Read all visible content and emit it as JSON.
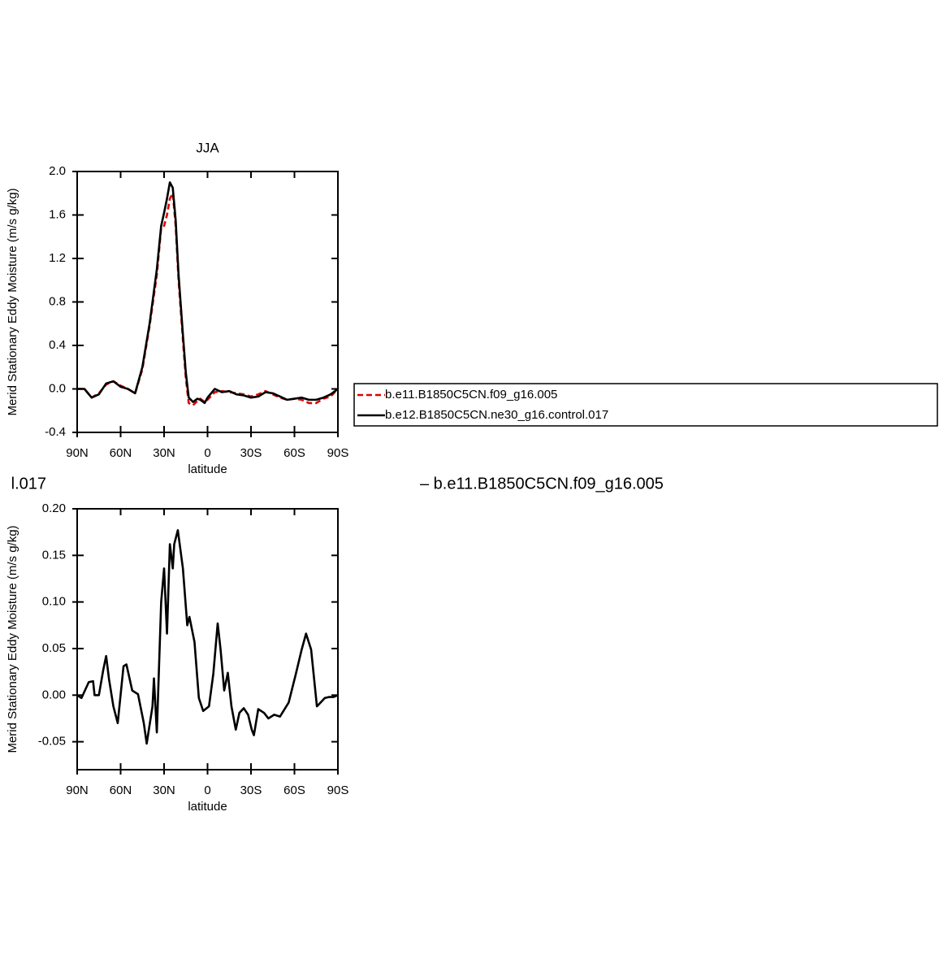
{
  "chart_data": [
    {
      "type": "line",
      "title": "JJA",
      "xlabel": "latitude",
      "ylabel": "Merid Stationary Eddy Moisture (m/s g/kg)",
      "x": [
        90,
        85,
        80,
        75,
        70,
        65,
        60,
        55,
        50,
        45,
        40,
        35,
        32,
        30,
        28,
        26,
        24,
        22,
        20,
        17,
        15,
        13,
        10,
        7,
        5,
        2,
        0,
        -5,
        -10,
        -15,
        -20,
        -25,
        -30,
        -35,
        -40,
        -45,
        -50,
        -55,
        -60,
        -65,
        -70,
        -75,
        -80,
        -85,
        -90
      ],
      "series": [
        {
          "name": "b.e11.B1850C5CN.f09_g16.005",
          "color": "#e00000",
          "linestyle": "dashed",
          "values": [
            0,
            0,
            -0.08,
            -0.04,
            0.04,
            0.07,
            0.03,
            0,
            -0.04,
            0.18,
            0.58,
            1.05,
            1.48,
            1.5,
            1.6,
            1.75,
            1.8,
            1.5,
            1.0,
            0.45,
            0.1,
            -0.13,
            -0.15,
            -0.11,
            -0.09,
            -0.12,
            -0.1,
            -0.03,
            -0.02,
            -0.03,
            -0.04,
            -0.05,
            -0.07,
            -0.05,
            -0.02,
            -0.05,
            -0.08,
            -0.1,
            -0.09,
            -0.1,
            -0.13,
            -0.13,
            -0.09,
            -0.07,
            0
          ]
        },
        {
          "name": "b.e12.B1850C5CN.ne30_g16.control.017",
          "color": "#000000",
          "linestyle": "solid",
          "values": [
            0,
            0,
            -0.08,
            -0.05,
            0.05,
            0.07,
            0.02,
            0,
            -0.04,
            0.2,
            0.6,
            1.1,
            1.5,
            1.62,
            1.75,
            1.9,
            1.85,
            1.55,
            1.05,
            0.5,
            0.15,
            -0.08,
            -0.12,
            -0.09,
            -0.1,
            -0.13,
            -0.08,
            0,
            -0.03,
            -0.02,
            -0.05,
            -0.06,
            -0.08,
            -0.07,
            -0.03,
            -0.04,
            -0.07,
            -0.1,
            -0.09,
            -0.08,
            -0.1,
            -0.1,
            -0.08,
            -0.05,
            0
          ]
        }
      ],
      "xlim": [
        90,
        -90
      ],
      "xticks": [
        {
          "value": 90,
          "label": "90N"
        },
        {
          "value": 60,
          "label": "60N"
        },
        {
          "value": 30,
          "label": "30N"
        },
        0,
        {
          "value": -30,
          "label": "30S"
        },
        {
          "value": -60,
          "label": "60S"
        },
        {
          "value": -90,
          "label": "90S"
        }
      ],
      "ylim": [
        -0.4,
        2.0
      ],
      "yticks": [
        {
          "value": 2.0,
          "label": "2.0"
        },
        {
          "value": 1.6,
          "label": "1.6"
        },
        {
          "value": 1.2,
          "label": "1.2"
        },
        {
          "value": 0.8,
          "label": "0.8"
        },
        {
          "value": 0.4,
          "label": "0.4"
        },
        {
          "value": 0,
          "label": "0.0"
        },
        {
          "value": -0.4,
          "label": "-0.4"
        }
      ]
    },
    {
      "type": "line",
      "title_left": "l.017",
      "title_right": "– b.e11.B1850C5CN.f09_g16.005",
      "xlabel": "latitude",
      "ylabel": "Merid Stationary Eddy Moisture (m/s g/kg)",
      "x": [
        90,
        87,
        82,
        79,
        78,
        75,
        72,
        70,
        68,
        65,
        62,
        58,
        56,
        52,
        48,
        44,
        42,
        38,
        37,
        35,
        32,
        30,
        28,
        26,
        24,
        23,
        20.5,
        17,
        14,
        12.5,
        9,
        6,
        3,
        -1,
        -4,
        -7,
        -9,
        -11.5,
        -14,
        -16.5,
        -19.5,
        -22,
        -25,
        -28,
        -30.5,
        -32,
        -35,
        -39,
        -42,
        -46,
        -50,
        -56,
        -61,
        -65,
        -68,
        -71.5,
        -75.5,
        -78,
        -81,
        -84,
        -87,
        -90
      ],
      "series": [
        {
          "color": "#000000",
          "linestyle": "solid",
          "values": [
            0,
            -0.003,
            0.014,
            0.015,
            0,
            0,
            0.027,
            0.042,
            0.017,
            -0.012,
            -0.03,
            0.031,
            0.033,
            0.005,
            0.001,
            -0.03,
            -0.052,
            -0.012,
            0.018,
            -0.04,
            0.1,
            0.136,
            0.066,
            0.162,
            0.136,
            0.162,
            0.177,
            0.136,
            0.075,
            0.084,
            0.057,
            -0.003,
            -0.017,
            -0.012,
            0.023,
            0.077,
            0.049,
            0.005,
            0.024,
            -0.012,
            -0.037,
            -0.019,
            -0.014,
            -0.021,
            -0.037,
            -0.043,
            -0.015,
            -0.019,
            -0.025,
            -0.021,
            -0.023,
            -0.008,
            0.023,
            0.049,
            0.066,
            0.049,
            -0.012,
            -0.008,
            -0.003,
            -0.002,
            -0.002,
            0
          ]
        }
      ],
      "xlim": [
        90,
        -90
      ],
      "xticks": [
        {
          "value": 90,
          "label": "90N"
        },
        {
          "value": 60,
          "label": "60N"
        },
        {
          "value": 30,
          "label": "30N"
        },
        0,
        {
          "value": -30,
          "label": "30S"
        },
        {
          "value": -60,
          "label": "60S"
        },
        {
          "value": -90,
          "label": "90S"
        }
      ],
      "ylim": [
        -0.08,
        0.2
      ],
      "yticks": [
        {
          "value": 0.2,
          "label": "0.20"
        },
        {
          "value": 0.15,
          "label": "0.15"
        },
        {
          "value": 0.1,
          "label": "0.10"
        },
        {
          "value": 0.05,
          "label": "0.05"
        },
        {
          "value": 0,
          "label": "0.00"
        },
        {
          "value": -0.05,
          "label": "-0.05"
        }
      ]
    }
  ]
}
